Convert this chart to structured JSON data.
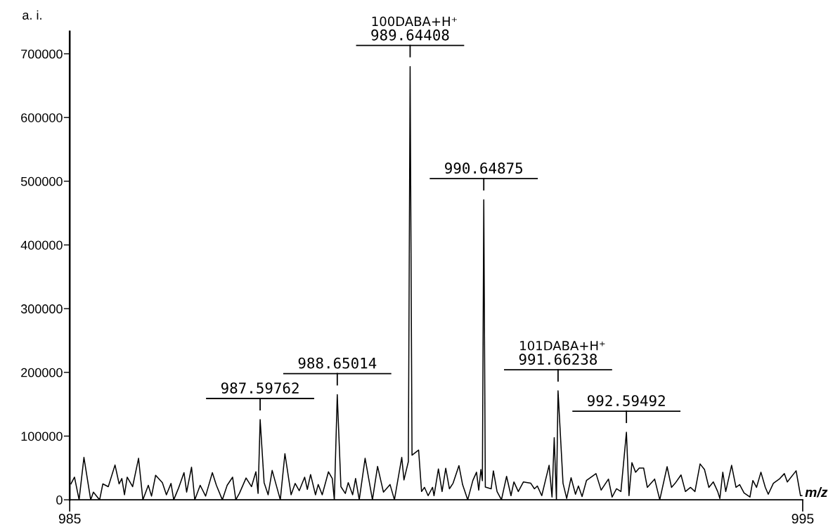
{
  "chart_data": {
    "type": "line",
    "xlabel": "m/z",
    "ylabel": "a. i.",
    "xlim": [
      985,
      995
    ],
    "xticks": [
      985,
      995
    ],
    "ylim": [
      0,
      735000
    ],
    "yticks": [
      0,
      100000,
      200000,
      300000,
      400000,
      500000,
      600000,
      700000
    ],
    "grid": false,
    "legend": false,
    "marker": "none",
    "line_style": "solid",
    "series": [
      {
        "color": "#000000",
        "x": [
          985.017,
          985.065,
          985.128,
          985.194,
          985.286,
          985.323,
          985.408,
          985.452,
          985.526,
          985.618,
          985.674,
          985.711,
          985.747,
          985.784,
          985.858,
          985.939,
          985.998,
          986.072,
          986.116,
          986.172,
          986.264,
          986.319,
          986.382,
          986.419,
          986.485,
          986.559,
          986.595,
          986.662,
          986.706,
          986.78,
          986.854,
          986.946,
          987.001,
          987.082,
          987.148,
          987.222,
          987.266,
          987.314,
          987.406,
          987.48,
          987.54,
          987.57,
          987.598,
          987.652,
          987.707,
          987.762,
          987.873,
          987.936,
          988.02,
          988.076,
          988.131,
          988.205,
          988.242,
          988.286,
          988.353,
          988.39,
          988.445,
          988.53,
          988.582,
          988.61,
          988.65,
          988.7,
          988.76,
          988.8,
          988.86,
          988.9,
          988.95,
          989.03,
          989.13,
          989.2,
          989.28,
          989.37,
          989.43,
          989.53,
          989.56,
          989.62,
          989.644,
          989.67,
          989.76,
          989.8,
          989.84,
          989.89,
          989.95,
          989.97,
          990.03,
          990.08,
          990.13,
          990.18,
          990.23,
          990.31,
          990.36,
          990.43,
          990.5,
          990.55,
          990.58,
          990.61,
          990.63,
          990.649,
          990.67,
          990.75,
          990.78,
          990.83,
          990.89,
          990.96,
          991.02,
          991.06,
          991.12,
          991.19,
          991.29,
          991.34,
          991.38,
          991.44,
          991.49,
          991.54,
          991.58,
          991.61,
          991.64,
          991.662,
          991.73,
          991.78,
          991.84,
          991.9,
          991.94,
          991.99,
          992.05,
          992.1,
          992.18,
          992.25,
          992.35,
          992.4,
          992.46,
          992.52,
          992.595,
          992.63,
          992.67,
          992.72,
          992.77,
          992.83,
          992.88,
          992.98,
          993.05,
          993.15,
          993.21,
          993.26,
          993.34,
          993.4,
          993.47,
          993.53,
          993.6,
          993.66,
          993.72,
          993.78,
          993.84,
          993.87,
          993.91,
          993.95,
          994.03,
          994.09,
          994.14,
          994.2,
          994.28,
          994.32,
          994.37,
          994.43,
          994.49,
          994.53,
          994.6,
          994.68,
          994.75,
          994.79,
          994.91,
          994.97,
          994.99
        ],
        "values": [
          25000,
          35500,
          0,
          66500,
          0,
          12000,
          0,
          25000,
          20600,
          54600,
          25000,
          33400,
          7900,
          35500,
          20600,
          65200,
          0,
          22800,
          5800,
          38500,
          27000,
          7900,
          25700,
          0,
          18500,
          42700,
          12100,
          51200,
          0,
          22800,
          5800,
          42700,
          22800,
          0,
          22800,
          35500,
          0,
          10000,
          34200,
          20600,
          44000,
          10000,
          125900,
          27000,
          7900,
          46100,
          0,
          72400,
          7900,
          25700,
          14300,
          35500,
          16400,
          39700,
          7900,
          24000,
          7900,
          44000,
          33400,
          0,
          165000,
          20600,
          10000,
          27000,
          7900,
          33400,
          0,
          65200,
          0,
          52400,
          12100,
          24000,
          0,
          66500,
          31200,
          60000,
          680000,
          70000,
          78000,
          13000,
          19500,
          6500,
          19500,
          6500,
          48500,
          13000,
          49400,
          17300,
          26000,
          53700,
          23800,
          0,
          30300,
          43300,
          15200,
          47600,
          30000,
          471000,
          20000,
          17300,
          45500,
          13000,
          0,
          36800,
          6500,
          28100,
          13000,
          28100,
          26000,
          17300,
          21600,
          6500,
          30300,
          54100,
          4300,
          97400,
          0,
          171000,
          26000,
          2200,
          34600,
          8700,
          21600,
          5200,
          30300,
          34600,
          41100,
          15200,
          32500,
          4300,
          17300,
          13000,
          106000,
          6500,
          58400,
          43300,
          49800,
          49800,
          19500,
          32500,
          0,
          52000,
          19500,
          26000,
          39000,
          13000,
          19500,
          13000,
          56300,
          47600,
          19500,
          28100,
          13000,
          2200,
          43300,
          13000,
          54100,
          19500,
          23800,
          10800,
          4300,
          30300,
          19500,
          43300,
          19500,
          8700,
          26000,
          32500,
          41100,
          28100,
          45500,
          6500,
          6500
        ]
      }
    ],
    "annotations": [
      {
        "text": "987.59762",
        "x": 987.59762,
        "y": 125900
      },
      {
        "text": "988.65014",
        "x": 988.65014,
        "y": 165000
      },
      {
        "text": "989.64408",
        "x": 989.64408,
        "y": 680000
      },
      "100DABA+H⁺",
      {
        "text": "990.64875",
        "x": 990.64875,
        "y": 471000
      },
      {
        "text": "991.66238",
        "x": 991.66238,
        "y": 171000
      },
      "101DABA+H⁺",
      {
        "text": "992.59492",
        "x": 992.59492,
        "y": 106000
      }
    ]
  }
}
